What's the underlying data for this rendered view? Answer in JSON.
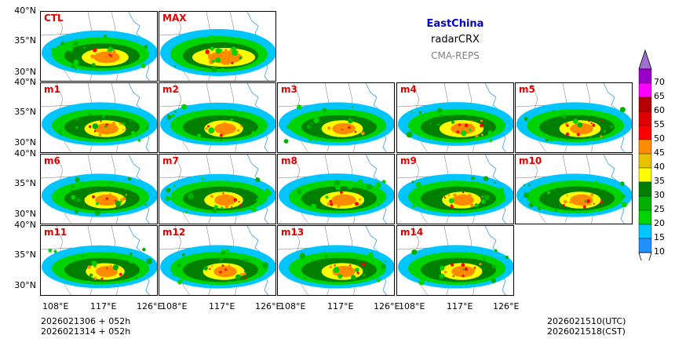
{
  "header": {
    "region": "EastChina",
    "product": "radarCRX",
    "system": "CMA-REPS",
    "region_color": "#0000cc",
    "system_color": "#808080"
  },
  "panels_row0": [
    {
      "label": "CTL",
      "intensity": 0.7
    },
    {
      "label": "MAX",
      "intensity": 1.0
    }
  ],
  "panels_grid": [
    {
      "label": "m1",
      "intensity": 0.6
    },
    {
      "label": "m2",
      "intensity": 0.55
    },
    {
      "label": "m3",
      "intensity": 0.6
    },
    {
      "label": "m4",
      "intensity": 0.65
    },
    {
      "label": "m5",
      "intensity": 0.6
    },
    {
      "label": "m6",
      "intensity": 0.6
    },
    {
      "label": "m7",
      "intensity": 0.55
    },
    {
      "label": "m8",
      "intensity": 0.65
    },
    {
      "label": "m9",
      "intensity": 0.55
    },
    {
      "label": "m10",
      "intensity": 0.6
    },
    {
      "label": "m11",
      "intensity": 0.55
    },
    {
      "label": "m12",
      "intensity": 0.6
    },
    {
      "label": "m13",
      "intensity": 0.6
    },
    {
      "label": "m14",
      "intensity": 0.6
    }
  ],
  "axes": {
    "lat_labels": [
      "40°N",
      "35°N",
      "30°N"
    ],
    "lon_labels": [
      "108°E",
      "117°E",
      "126°E"
    ]
  },
  "colorbar": {
    "levels": [
      "10",
      "15",
      "20",
      "25",
      "30",
      "35",
      "40",
      "45",
      "50",
      "55",
      "60",
      "65",
      "70"
    ],
    "colors": [
      "#1e90ff",
      "#00c5ff",
      "#00d400",
      "#00b000",
      "#007f00",
      "#ffff00",
      "#e6c200",
      "#ff8c00",
      "#ff0000",
      "#e00000",
      "#b40000",
      "#ff00ff",
      "#9a00c8",
      "#a070d0"
    ]
  },
  "footer": {
    "init_line1": "2026021306  +  052h",
    "init_line2": "2026021314  +  052h",
    "valid_utc": "2026021510(UTC)",
    "valid_cst": "2026021518(CST)"
  }
}
